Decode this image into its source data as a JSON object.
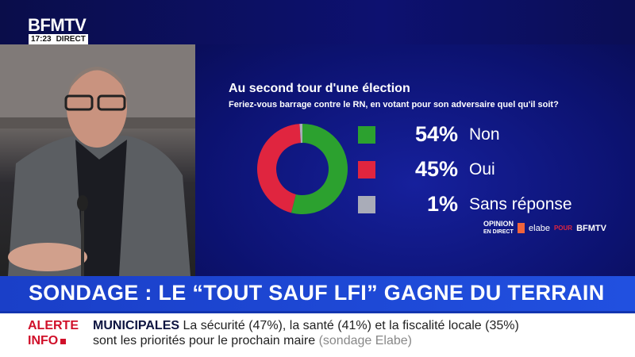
{
  "channel": {
    "logo": "BFMTV",
    "time": "17:23",
    "live": "DIRECT"
  },
  "chart_data": {
    "type": "pie",
    "variant": "donut",
    "title": "Au second tour d'une élection",
    "subtitle": "Feriez-vous barrage contre le RN, en votant pour son adversaire quel qu'il soit?",
    "categories": [
      "Non",
      "Oui",
      "Sans réponse"
    ],
    "values": [
      54,
      45,
      1
    ],
    "labels": [
      "54%",
      "45%",
      "1%"
    ],
    "colors": [
      "#2ca12f",
      "#e0253f",
      "#a9acb8"
    ]
  },
  "credit": {
    "opinion": "OPINION",
    "en_direct": "EN DIRECT",
    "elabe": "elabe",
    "pour": "POUR",
    "bfmtv": "BFMTV"
  },
  "banner": {
    "headline": "SONDAGE : LE “TOUT SAUF LFI” GAGNE DU TERRAIN"
  },
  "ticker": {
    "alert_line1": "ALERTE",
    "alert_line2": "INFO",
    "topic": "MUNICIPALES",
    "text": " La sécurité (47%), la santé (41%) et la fiscalité locale (35%) sont les priorités pour le prochain maire ",
    "source": "(sondage Elabe)"
  }
}
